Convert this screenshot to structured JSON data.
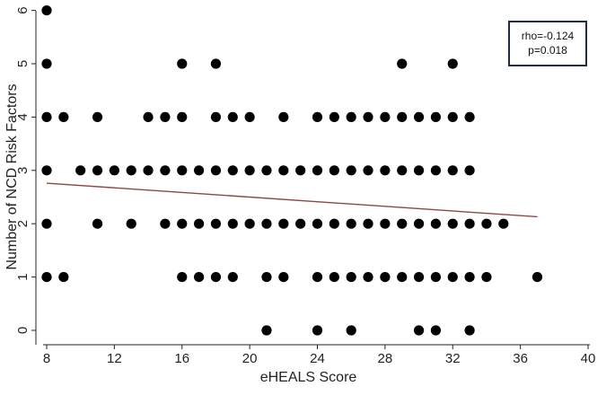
{
  "chart_data": {
    "type": "scatter",
    "title": "",
    "xlabel": "eHEALS Score",
    "ylabel": "Number of NCD Risk Factors",
    "xlim": [
      8,
      40
    ],
    "ylim": [
      0,
      6
    ],
    "xticks": [
      8,
      12,
      16,
      20,
      24,
      28,
      32,
      36,
      40
    ],
    "yticks": [
      0,
      1,
      2,
      3,
      4,
      5,
      6
    ],
    "grid": false,
    "marker_color": "#000000",
    "fit_line_color": "#8b4a43",
    "annotation": {
      "line1": "rho=-0.124",
      "line2": "p=0.018",
      "border_color": "#1f2a4d",
      "position": "top-right"
    },
    "points": [
      {
        "x": 8,
        "y": 6
      },
      {
        "x": 8,
        "y": 5
      },
      {
        "x": 8,
        "y": 4
      },
      {
        "x": 8,
        "y": 3
      },
      {
        "x": 8,
        "y": 2
      },
      {
        "x": 8,
        "y": 1
      },
      {
        "x": 9,
        "y": 4
      },
      {
        "x": 9,
        "y": 1
      },
      {
        "x": 10,
        "y": 3
      },
      {
        "x": 11,
        "y": 4
      },
      {
        "x": 11,
        "y": 3
      },
      {
        "x": 11,
        "y": 2
      },
      {
        "x": 12,
        "y": 3
      },
      {
        "x": 13,
        "y": 3
      },
      {
        "x": 13,
        "y": 2
      },
      {
        "x": 14,
        "y": 4
      },
      {
        "x": 14,
        "y": 3
      },
      {
        "x": 15,
        "y": 4
      },
      {
        "x": 15,
        "y": 3
      },
      {
        "x": 15,
        "y": 2
      },
      {
        "x": 16,
        "y": 5
      },
      {
        "x": 16,
        "y": 4
      },
      {
        "x": 16,
        "y": 3
      },
      {
        "x": 16,
        "y": 2
      },
      {
        "x": 16,
        "y": 1
      },
      {
        "x": 17,
        "y": 3
      },
      {
        "x": 17,
        "y": 2
      },
      {
        "x": 17,
        "y": 1
      },
      {
        "x": 18,
        "y": 5
      },
      {
        "x": 18,
        "y": 4
      },
      {
        "x": 18,
        "y": 3
      },
      {
        "x": 18,
        "y": 2
      },
      {
        "x": 18,
        "y": 1
      },
      {
        "x": 19,
        "y": 4
      },
      {
        "x": 19,
        "y": 3
      },
      {
        "x": 19,
        "y": 2
      },
      {
        "x": 19,
        "y": 1
      },
      {
        "x": 20,
        "y": 4
      },
      {
        "x": 20,
        "y": 3
      },
      {
        "x": 20,
        "y": 2
      },
      {
        "x": 21,
        "y": 3
      },
      {
        "x": 21,
        "y": 2
      },
      {
        "x": 21,
        "y": 1
      },
      {
        "x": 21,
        "y": 0
      },
      {
        "x": 22,
        "y": 4
      },
      {
        "x": 22,
        "y": 3
      },
      {
        "x": 22,
        "y": 2
      },
      {
        "x": 22,
        "y": 1
      },
      {
        "x": 23,
        "y": 3
      },
      {
        "x": 23,
        "y": 2
      },
      {
        "x": 24,
        "y": 4
      },
      {
        "x": 24,
        "y": 3
      },
      {
        "x": 24,
        "y": 2
      },
      {
        "x": 24,
        "y": 1
      },
      {
        "x": 24,
        "y": 0
      },
      {
        "x": 25,
        "y": 4
      },
      {
        "x": 25,
        "y": 3
      },
      {
        "x": 25,
        "y": 2
      },
      {
        "x": 25,
        "y": 1
      },
      {
        "x": 26,
        "y": 4
      },
      {
        "x": 26,
        "y": 3
      },
      {
        "x": 26,
        "y": 2
      },
      {
        "x": 26,
        "y": 1
      },
      {
        "x": 26,
        "y": 0
      },
      {
        "x": 27,
        "y": 4
      },
      {
        "x": 27,
        "y": 3
      },
      {
        "x": 27,
        "y": 2
      },
      {
        "x": 27,
        "y": 1
      },
      {
        "x": 28,
        "y": 4
      },
      {
        "x": 28,
        "y": 3
      },
      {
        "x": 28,
        "y": 2
      },
      {
        "x": 28,
        "y": 1
      },
      {
        "x": 29,
        "y": 5
      },
      {
        "x": 29,
        "y": 4
      },
      {
        "x": 29,
        "y": 3
      },
      {
        "x": 29,
        "y": 2
      },
      {
        "x": 29,
        "y": 1
      },
      {
        "x": 30,
        "y": 4
      },
      {
        "x": 30,
        "y": 3
      },
      {
        "x": 30,
        "y": 2
      },
      {
        "x": 30,
        "y": 1
      },
      {
        "x": 30,
        "y": 0
      },
      {
        "x": 31,
        "y": 4
      },
      {
        "x": 31,
        "y": 3
      },
      {
        "x": 31,
        "y": 2
      },
      {
        "x": 31,
        "y": 1
      },
      {
        "x": 31,
        "y": 0
      },
      {
        "x": 32,
        "y": 5
      },
      {
        "x": 32,
        "y": 4
      },
      {
        "x": 32,
        "y": 3
      },
      {
        "x": 32,
        "y": 2
      },
      {
        "x": 32,
        "y": 1
      },
      {
        "x": 33,
        "y": 4
      },
      {
        "x": 33,
        "y": 3
      },
      {
        "x": 33,
        "y": 2
      },
      {
        "x": 33,
        "y": 1
      },
      {
        "x": 33,
        "y": 0
      },
      {
        "x": 34,
        "y": 2
      },
      {
        "x": 34,
        "y": 1
      },
      {
        "x": 35,
        "y": 2
      },
      {
        "x": 37,
        "y": 1
      }
    ],
    "fit_line": {
      "x": [
        8,
        37
      ],
      "y": [
        2.76,
        2.13
      ]
    }
  }
}
